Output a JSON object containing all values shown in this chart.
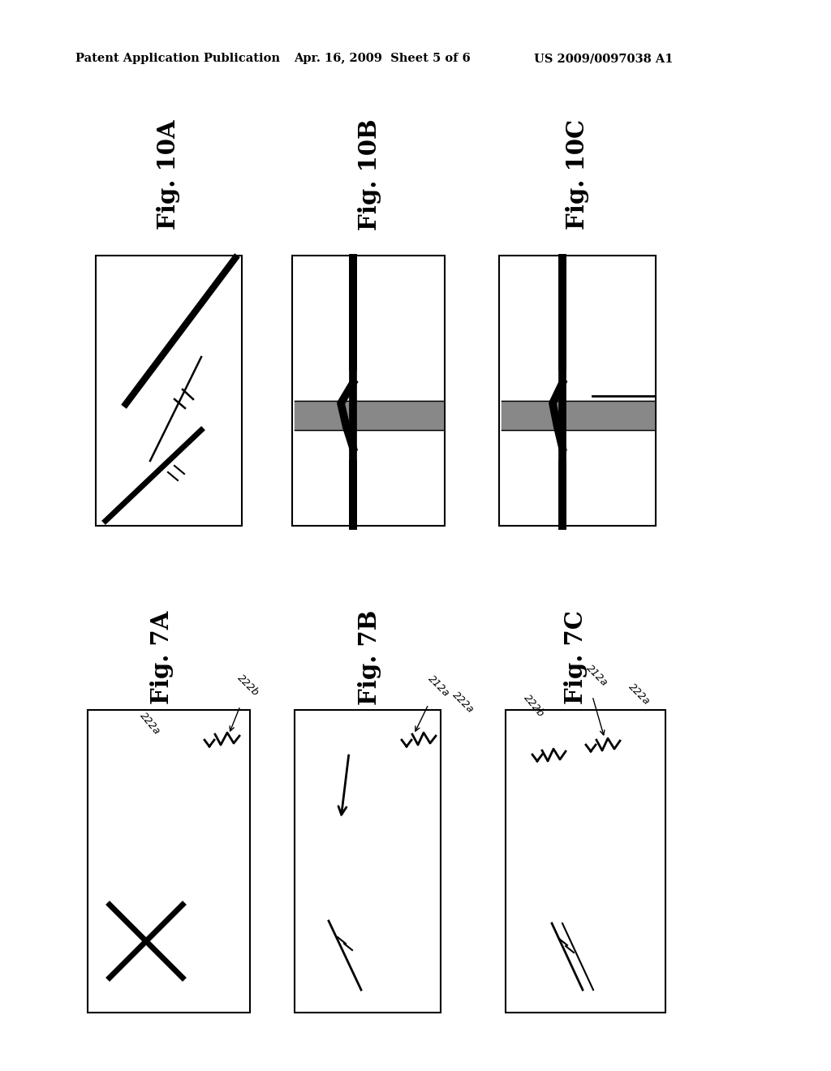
{
  "background_color": "#ffffff",
  "header_left": "Patent Application Publication",
  "header_mid": "Apr. 16, 2009  Sheet 5 of 6",
  "header_right": "US 2009/0097038 A1",
  "fig_labels_top": [
    "Fig. 10A",
    "Fig. 10B",
    "Fig. 10C"
  ],
  "fig_labels_bottom": [
    "Fig. 7A",
    "Fig. 7B",
    "Fig. 7C"
  ]
}
